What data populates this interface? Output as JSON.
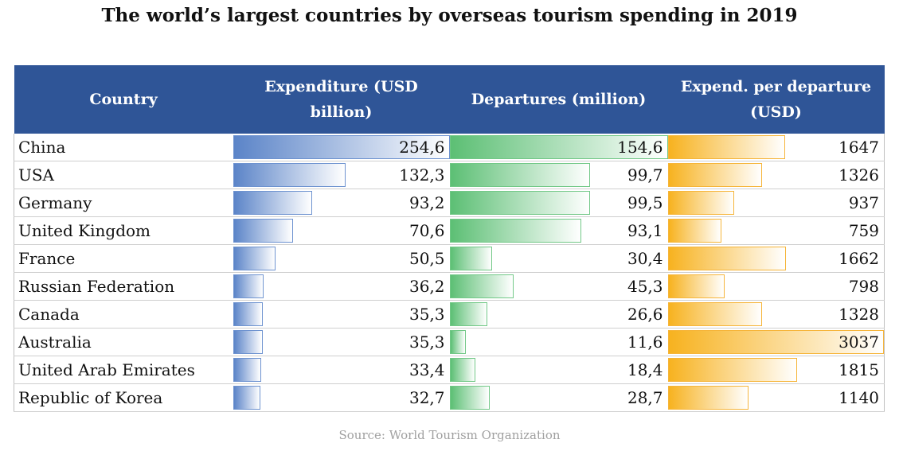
{
  "title": "The world’s largest countries by overseas tourism spending in 2019",
  "source": "Source: World Tourism Organization",
  "chart_data": {
    "type": "table",
    "columns": [
      "Country",
      "Expenditure (USD billion)",
      "Departures (million)",
      "Expend. per departure (USD)"
    ],
    "rows": [
      {
        "country": "China",
        "expenditure": "254,6",
        "departures": "154,6",
        "per_departure": "1647"
      },
      {
        "country": "USA",
        "expenditure": "132,3",
        "departures": "99,7",
        "per_departure": "1326"
      },
      {
        "country": "Germany",
        "expenditure": "93,2",
        "departures": "99,5",
        "per_departure": "937"
      },
      {
        "country": "United Kingdom",
        "expenditure": "70,6",
        "departures": "93,1",
        "per_departure": "759"
      },
      {
        "country": "France",
        "expenditure": "50,5",
        "departures": "30,4",
        "per_departure": "1662"
      },
      {
        "country": "Russian Federation",
        "expenditure": "36,2",
        "departures": "45,3",
        "per_departure": "798"
      },
      {
        "country": "Canada",
        "expenditure": "35,3",
        "departures": "26,6",
        "per_departure": "1328"
      },
      {
        "country": "Australia",
        "expenditure": "35,3",
        "departures": "11,6",
        "per_departure": "3037"
      },
      {
        "country": "United Arab Emirates",
        "expenditure": "33,4",
        "departures": "18,4",
        "per_departure": "1815"
      },
      {
        "country": "Republic of Korea",
        "expenditure": "32,7",
        "departures": "28,7",
        "per_departure": "1140"
      }
    ],
    "colors": {
      "header": "#2f5597",
      "expenditure_bar": "#5b84c8",
      "departures_bar": "#5cbf74",
      "per_departure_bar": "#f7b21f"
    }
  }
}
